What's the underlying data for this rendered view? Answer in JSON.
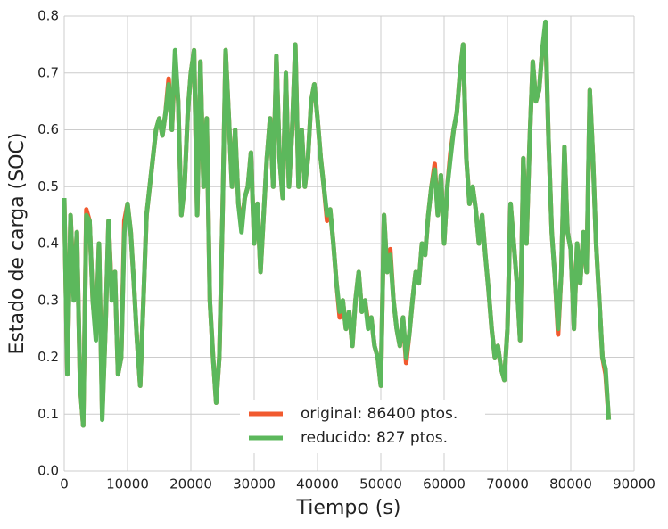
{
  "chart_data": {
    "type": "line",
    "xlabel": "Tiempo (s)",
    "ylabel": "Estado de carga (SOC)",
    "x": [
      0,
      500,
      1000,
      1500,
      2000,
      2500,
      3000,
      3500,
      4000,
      4500,
      5000,
      5500,
      6000,
      6500,
      7000,
      7500,
      8000,
      8500,
      9000,
      9500,
      10000,
      10500,
      11000,
      11500,
      12000,
      12500,
      13000,
      14000,
      14500,
      15000,
      15500,
      16000,
      16500,
      17000,
      17500,
      18000,
      18500,
      19000,
      19500,
      20000,
      20500,
      21000,
      21500,
      22000,
      22500,
      23000,
      23500,
      24000,
      24500,
      25000,
      25500,
      26000,
      26500,
      27000,
      27500,
      28000,
      28500,
      29000,
      29500,
      30000,
      30500,
      31000,
      31500,
      32000,
      32500,
      33000,
      33500,
      34000,
      34500,
      35000,
      35500,
      36000,
      36500,
      37000,
      37500,
      38000,
      38500,
      39000,
      39500,
      40000,
      40500,
      41000,
      41500,
      42000,
      42500,
      43000,
      43500,
      44000,
      44500,
      45000,
      45500,
      46000,
      46500,
      47000,
      47500,
      48000,
      48500,
      49000,
      49500,
      50000,
      50500,
      51000,
      51500,
      52000,
      52500,
      53000,
      53500,
      54000,
      54500,
      55000,
      55500,
      56000,
      56500,
      57000,
      57500,
      58000,
      58500,
      59000,
      59500,
      60000,
      60500,
      61000,
      61500,
      62000,
      62500,
      63000,
      63500,
      64000,
      64500,
      65000,
      65500,
      66000,
      66500,
      67000,
      67500,
      68000,
      68500,
      69000,
      69500,
      70000,
      70500,
      71000,
      71500,
      72000,
      72500,
      73000,
      73500,
      74000,
      74500,
      75000,
      75500,
      76000,
      76500,
      77000,
      77500,
      78000,
      78500,
      79000,
      79500,
      80000,
      80500,
      81000,
      81500,
      82000,
      82500,
      83000,
      83500,
      84000,
      84500,
      85000,
      85500,
      86000
    ],
    "series": [
      {
        "name": "original: 86400 ptos.",
        "color": "#f15a2f",
        "values": [
          0.48,
          0.17,
          0.45,
          0.31,
          0.42,
          0.15,
          0.08,
          0.46,
          0.44,
          0.3,
          0.24,
          0.4,
          0.1,
          0.25,
          0.44,
          0.31,
          0.35,
          0.17,
          0.2,
          0.44,
          0.47,
          0.42,
          0.33,
          0.23,
          0.15,
          0.3,
          0.45,
          0.55,
          0.6,
          0.62,
          0.59,
          0.63,
          0.69,
          0.6,
          0.72,
          0.65,
          0.45,
          0.5,
          0.63,
          0.7,
          0.74,
          0.45,
          0.72,
          0.5,
          0.62,
          0.3,
          0.2,
          0.12,
          0.2,
          0.45,
          0.74,
          0.62,
          0.5,
          0.6,
          0.47,
          0.43,
          0.48,
          0.5,
          0.56,
          0.4,
          0.47,
          0.35,
          0.45,
          0.55,
          0.62,
          0.5,
          0.73,
          0.55,
          0.48,
          0.7,
          0.5,
          0.6,
          0.75,
          0.5,
          0.6,
          0.5,
          0.55,
          0.65,
          0.68,
          0.62,
          0.55,
          0.5,
          0.44,
          0.46,
          0.4,
          0.33,
          0.27,
          0.3,
          0.25,
          0.28,
          0.22,
          0.3,
          0.35,
          0.28,
          0.3,
          0.26,
          0.27,
          0.22,
          0.2,
          0.15,
          0.45,
          0.35,
          0.39,
          0.3,
          0.25,
          0.22,
          0.27,
          0.19,
          0.24,
          0.3,
          0.35,
          0.33,
          0.4,
          0.38,
          0.45,
          0.5,
          0.54,
          0.45,
          0.52,
          0.4,
          0.5,
          0.56,
          0.6,
          0.63,
          0.7,
          0.75,
          0.55,
          0.47,
          0.5,
          0.46,
          0.4,
          0.45,
          0.38,
          0.32,
          0.25,
          0.2,
          0.22,
          0.18,
          0.16,
          0.25,
          0.47,
          0.4,
          0.33,
          0.23,
          0.55,
          0.4,
          0.58,
          0.72,
          0.65,
          0.67,
          0.74,
          0.78,
          0.58,
          0.42,
          0.34,
          0.24,
          0.35,
          0.57,
          0.42,
          0.39,
          0.25,
          0.4,
          0.33,
          0.42,
          0.35,
          0.67,
          0.55,
          0.4,
          0.3,
          0.2,
          0.17,
          0.09
        ]
      },
      {
        "name": "reducido: 827 ptos.",
        "color": "#5cb85c",
        "values": [
          0.48,
          0.17,
          0.45,
          0.3,
          0.42,
          0.15,
          0.08,
          0.45,
          0.44,
          0.3,
          0.23,
          0.4,
          0.09,
          0.25,
          0.44,
          0.3,
          0.35,
          0.17,
          0.2,
          0.42,
          0.47,
          0.42,
          0.33,
          0.23,
          0.15,
          0.3,
          0.45,
          0.55,
          0.6,
          0.62,
          0.59,
          0.63,
          0.68,
          0.6,
          0.74,
          0.65,
          0.45,
          0.5,
          0.63,
          0.7,
          0.74,
          0.45,
          0.72,
          0.5,
          0.62,
          0.3,
          0.2,
          0.12,
          0.2,
          0.45,
          0.74,
          0.62,
          0.5,
          0.6,
          0.47,
          0.42,
          0.48,
          0.5,
          0.56,
          0.4,
          0.47,
          0.35,
          0.45,
          0.55,
          0.62,
          0.5,
          0.73,
          0.55,
          0.48,
          0.7,
          0.5,
          0.6,
          0.75,
          0.5,
          0.6,
          0.5,
          0.55,
          0.65,
          0.68,
          0.62,
          0.55,
          0.5,
          0.45,
          0.46,
          0.4,
          0.33,
          0.28,
          0.3,
          0.25,
          0.28,
          0.22,
          0.3,
          0.35,
          0.28,
          0.3,
          0.25,
          0.27,
          0.22,
          0.2,
          0.15,
          0.45,
          0.35,
          0.38,
          0.3,
          0.25,
          0.22,
          0.27,
          0.2,
          0.24,
          0.3,
          0.35,
          0.33,
          0.4,
          0.38,
          0.45,
          0.5,
          0.53,
          0.45,
          0.52,
          0.4,
          0.5,
          0.55,
          0.6,
          0.63,
          0.7,
          0.75,
          0.55,
          0.47,
          0.5,
          0.46,
          0.4,
          0.45,
          0.38,
          0.32,
          0.25,
          0.2,
          0.22,
          0.18,
          0.16,
          0.25,
          0.47,
          0.4,
          0.33,
          0.23,
          0.55,
          0.4,
          0.58,
          0.72,
          0.65,
          0.67,
          0.74,
          0.79,
          0.58,
          0.42,
          0.34,
          0.25,
          0.35,
          0.57,
          0.42,
          0.39,
          0.25,
          0.4,
          0.33,
          0.42,
          0.35,
          0.67,
          0.55,
          0.4,
          0.3,
          0.2,
          0.18,
          0.09
        ]
      }
    ],
    "xlim": [
      0,
      90000
    ],
    "xticks": [
      0,
      10000,
      20000,
      30000,
      40000,
      50000,
      60000,
      70000,
      80000,
      90000
    ],
    "ylim": [
      0,
      0.8
    ],
    "yticks": [
      {
        "value": 0,
        "label": "0.0"
      },
      0.1,
      0.2,
      0.3,
      0.4,
      0.5,
      0.6,
      0.7,
      0.8
    ],
    "grid": true,
    "legend": "lower center"
  }
}
